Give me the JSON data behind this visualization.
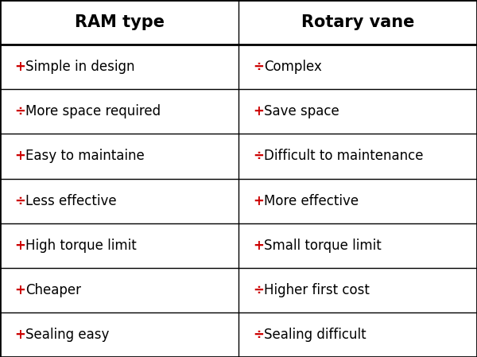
{
  "col1_header": "RAM type",
  "col2_header": "Rotary vane",
  "rows": [
    {
      "col1_symbol": "+",
      "col1_text": "Simple in design",
      "col2_symbol": "÷",
      "col2_text": "Complex"
    },
    {
      "col1_symbol": "÷",
      "col1_text": "More space required",
      "col2_symbol": "+",
      "col2_text": "Save space"
    },
    {
      "col1_symbol": "+",
      "col1_text": "Easy to maintaine",
      "col2_symbol": "÷",
      "col2_text": "Difficult to maintenance"
    },
    {
      "col1_symbol": "÷",
      "col1_text": "Less effective",
      "col2_symbol": "+",
      "col2_text": "More effective"
    },
    {
      "col1_symbol": "+",
      "col1_text": "High torque limit",
      "col2_symbol": "+",
      "col2_text": "Small torque limit"
    },
    {
      "col1_symbol": "+",
      "col1_text": "Cheaper",
      "col2_symbol": "÷",
      "col2_text": "Higher first cost"
    },
    {
      "col1_symbol": "+",
      "col1_text": "Sealing easy",
      "col2_symbol": "÷",
      "col2_text": "Sealing difficult"
    }
  ],
  "background_color": "#ffffff",
  "grid_color": "#000000",
  "header_text_color": "#000000",
  "symbol_color": "#cc0000",
  "body_text_color": "#000000",
  "header_fontsize": 15,
  "body_fontsize": 12,
  "col_split": 0.5,
  "outer_border_lw": 2,
  "inner_border_lw": 1,
  "header_border_lw": 2
}
